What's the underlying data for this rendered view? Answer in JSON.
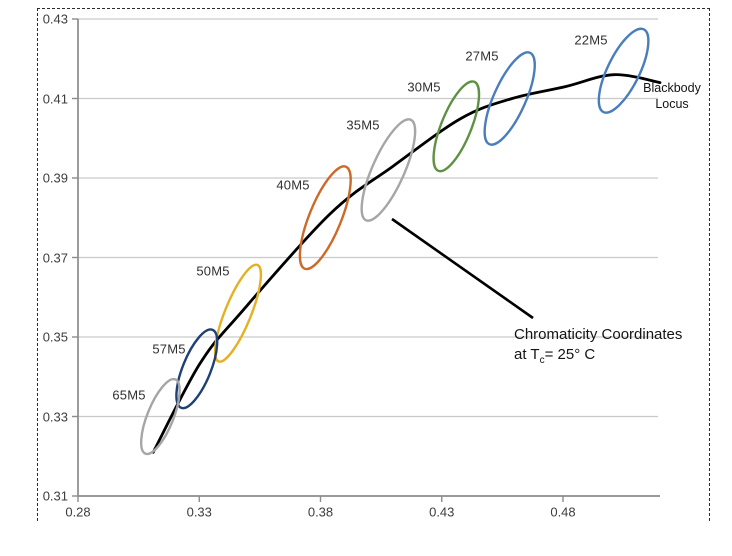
{
  "chart_data": {
    "type": "scatter",
    "title": "",
    "xlabel": "",
    "ylabel": "",
    "xlim": [
      0.28,
      0.52
    ],
    "ylim": [
      0.31,
      0.43
    ],
    "grid": "horizontal",
    "x_ticks": [
      0.28,
      0.33,
      0.38,
      0.43,
      0.48
    ],
    "y_ticks": [
      0.31,
      0.33,
      0.35,
      0.37,
      0.39,
      0.41,
      0.43
    ],
    "x_tick_labels": [
      "0.28",
      "0.33",
      "0.38",
      "0.43",
      "0.48"
    ],
    "y_tick_labels": [
      "0.31",
      "0.33",
      "0.35",
      "0.37",
      "0.39",
      "0.41",
      "0.43"
    ],
    "locus": {
      "name": "Blackbody Locus",
      "color": "#000000",
      "points": [
        [
          0.311,
          0.321
        ],
        [
          0.33,
          0.343
        ],
        [
          0.347,
          0.356
        ],
        [
          0.384,
          0.381
        ],
        [
          0.41,
          0.393
        ],
        [
          0.438,
          0.405
        ],
        [
          0.459,
          0.41
        ],
        [
          0.481,
          0.413
        ],
        [
          0.501,
          0.416
        ],
        [
          0.52,
          0.414
        ]
      ]
    },
    "ellipses": [
      {
        "label": "22M5",
        "x": 0.505,
        "y": 0.417,
        "color": "#4a7ebb",
        "rx": 16,
        "ry": 46,
        "tilt": 26
      },
      {
        "label": "27M5",
        "x": 0.458,
        "y": 0.41,
        "color": "#4a7ebb",
        "rx": 16,
        "ry": 50,
        "tilt": 24
      },
      {
        "label": "30M5",
        "x": 0.436,
        "y": 0.403,
        "color": "#5f9144",
        "rx": 15,
        "ry": 48,
        "tilt": 22
      },
      {
        "label": "35M5",
        "x": 0.408,
        "y": 0.392,
        "color": "#a6a6a6",
        "rx": 16,
        "ry": 55,
        "tilt": 24
      },
      {
        "label": "40M5",
        "x": 0.382,
        "y": 0.38,
        "color": "#cd6a29",
        "rx": 16,
        "ry": 55,
        "tilt": 22
      },
      {
        "label": "50M5",
        "x": 0.346,
        "y": 0.356,
        "color": "#e3b122",
        "rx": 13,
        "ry": 52,
        "tilt": 22
      },
      {
        "label": "57M5",
        "x": 0.329,
        "y": 0.342,
        "color": "#1f3f77",
        "rx": 14,
        "ry": 42,
        "tilt": 22
      },
      {
        "label": "65M5",
        "x": 0.314,
        "y": 0.33,
        "color": "#a6a6a6",
        "rx": 13,
        "ry": 40,
        "tilt": 22
      }
    ],
    "annotations": {
      "locus_label_line1": "Blackbody",
      "locus_label_line2": "Locus",
      "callout_line1": "Chromaticity Coordinates",
      "callout_line2_prefix": "at T",
      "callout_line2_sub": "c",
      "callout_line2_suffix": "= 25° C"
    },
    "colors": {
      "gridline": "#c9c9c9",
      "axis": "#8c8c8c",
      "tick_text": "#3d3d3d",
      "curve": "#000000",
      "border_dash": "#2b2b2b"
    }
  }
}
